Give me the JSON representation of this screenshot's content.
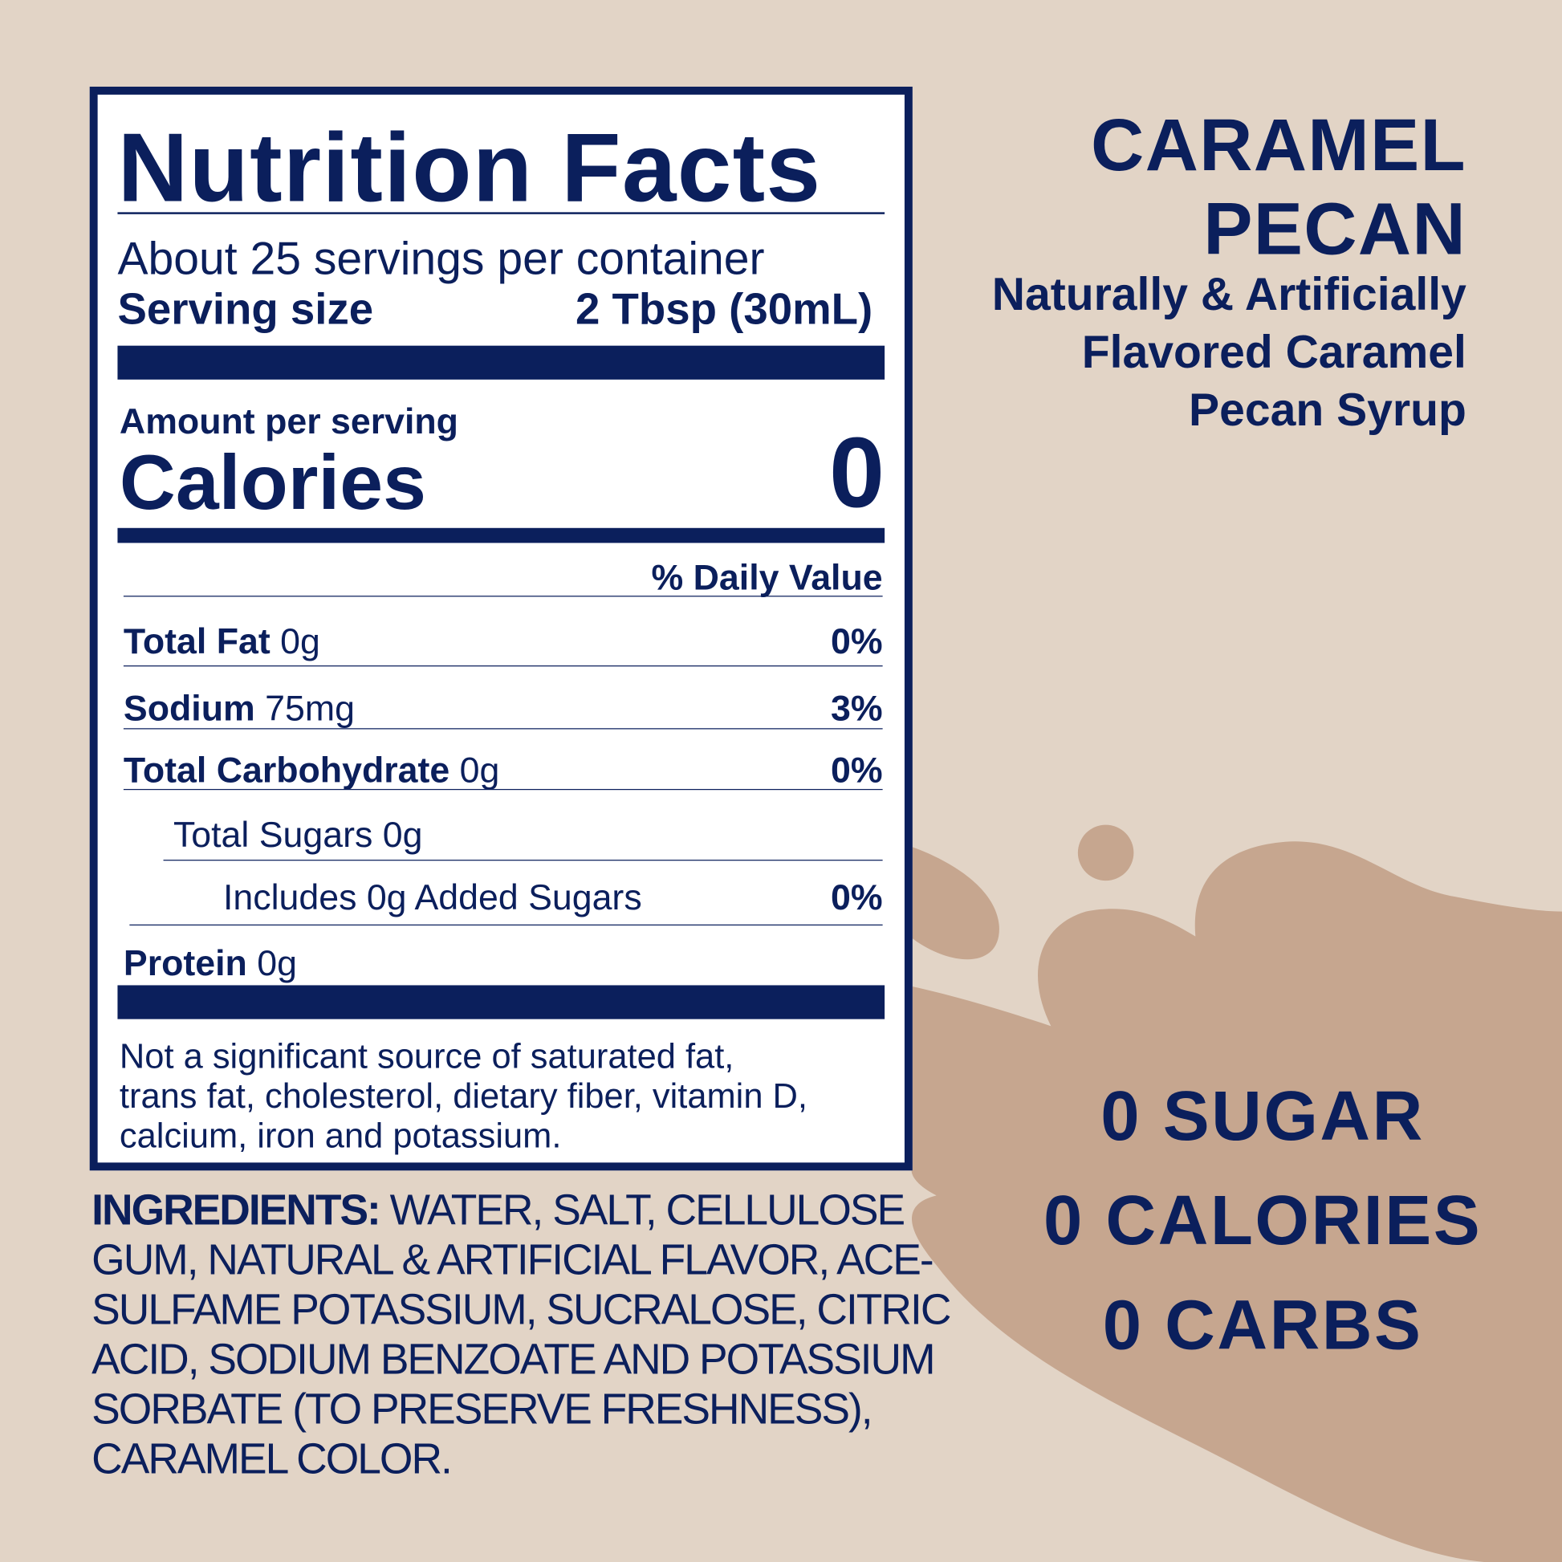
{
  "colors": {
    "background": "#e2d4c6",
    "splash": "#c6a68f",
    "navy": "#0b1f5c",
    "label_bg": "#ffffff"
  },
  "label": {
    "title": "Nutrition Facts",
    "servings": "About 25 servings per container",
    "serving_size_label": "Serving size",
    "serving_size_value": "2 Tbsp (30mL)",
    "amount_per_serving": "Amount per serving",
    "calories_label": "Calories",
    "calories_value": "0",
    "daily_value_header": "% Daily Value",
    "nutrients": [
      {
        "name": "Total Fat",
        "amount": "0g",
        "dv": "0%"
      },
      {
        "name": "Sodium",
        "amount": "75mg",
        "dv": "3%"
      },
      {
        "name": "Total Carbohydrate",
        "amount": "0g",
        "dv": "0%"
      },
      {
        "name": "",
        "amount": "Total Sugars 0g",
        "dv": ""
      },
      {
        "name": "",
        "amount": "Includes 0g Added Sugars",
        "dv": "0%"
      },
      {
        "name": "Protein",
        "amount": "0g",
        "dv": ""
      }
    ],
    "footnote": [
      "Not a significant source of saturated fat,",
      "trans fat, cholesterol, dietary fiber, vitamin D,",
      "calcium, iron and potassium."
    ]
  },
  "ingredients": {
    "label": "INGREDIENTS:",
    "lines": [
      " WATER, SALT, CELLULOSE",
      "GUM, NATURAL & ARTIFICIAL FLAVOR, ACE-",
      "SULFAME POTASSIUM, SUCRALOSE, CITRIC",
      "ACID, SODIUM BENZOATE AND POTASSIUM",
      "SORBATE (TO PRESERVE FRESHNESS),",
      "CARAMEL COLOR."
    ]
  },
  "product": {
    "name_lines": [
      "CARAMEL",
      "PECAN"
    ],
    "description_lines": [
      "Naturally & Artificially",
      "Flavored Caramel",
      "Pecan Syrup"
    ]
  },
  "claims": [
    "0 SUGAR",
    "0 CALORIES",
    "0 CARBS"
  ]
}
